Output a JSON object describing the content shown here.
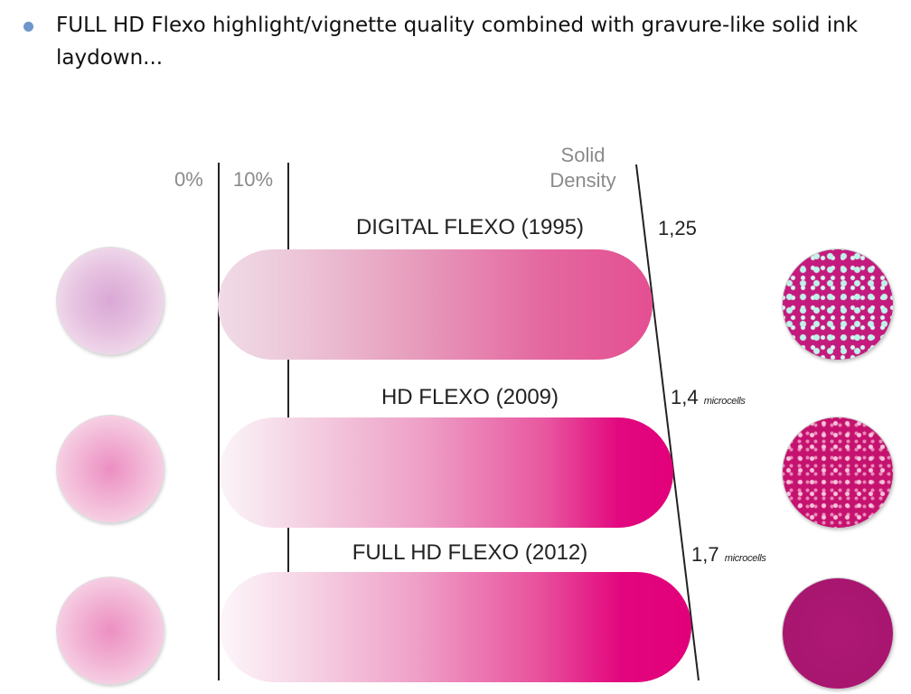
{
  "bullet": {
    "text": "FULL HD Flexo highlight/vignette quality combined with gravure-like solid ink laydown..."
  },
  "figure": {
    "axis_labels": {
      "zero_pct": "0%",
      "ten_pct": "10%",
      "solid_density_line1": "Solid",
      "solid_density_line2": "Density"
    },
    "rows": [
      {
        "title": "DIGITAL FLEXO (1995)",
        "density": "1,25",
        "density_note": "",
        "left_swatch": "highlight-dot",
        "right_swatch": "solid-microscopy"
      },
      {
        "title": "HD FLEXO (2009)",
        "density": "1,4",
        "density_note": "microcells",
        "left_swatch": "highlight-dot",
        "right_swatch": "solid-microscopy"
      },
      {
        "title": "FULL HD FLEXO (2012)",
        "density": "1,7",
        "density_note": "microcells",
        "left_swatch": "highlight-dot",
        "right_swatch": "solid-microscopy"
      }
    ]
  },
  "colors": {
    "bullet": "#6f96c9",
    "magenta": "#e2007a",
    "axis_label_gray": "#8a8a8a"
  }
}
